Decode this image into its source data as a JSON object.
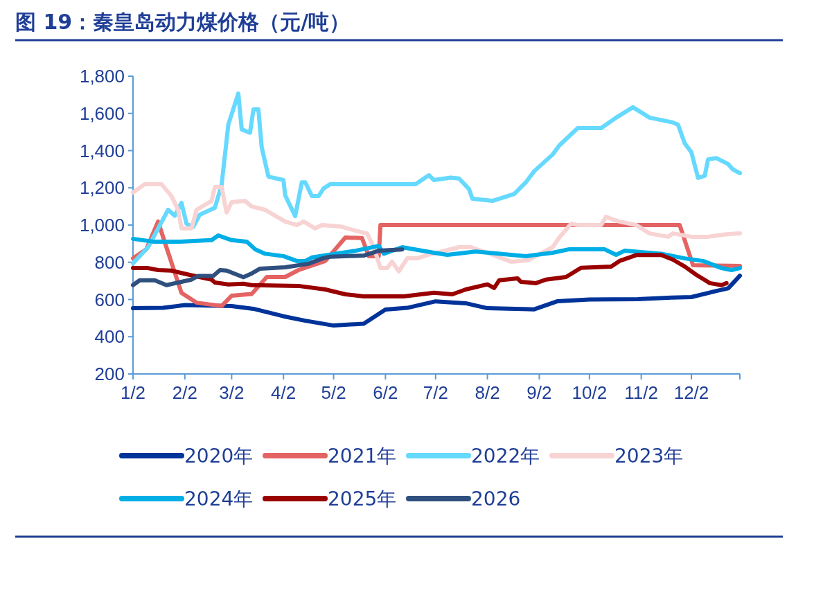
{
  "chart_data": {
    "type": "line",
    "title": "图 19：秦皇岛动力煤价格（元/吨）",
    "xlim": [
      "--01-02",
      "--12-31"
    ],
    "xticks": [
      {
        "value": "--01-02",
        "label": "1/2"
      },
      {
        "value": "--02-02",
        "label": "2/2"
      },
      {
        "value": "--03-02",
        "label": "3/2"
      },
      {
        "value": "--04-02",
        "label": "4/2"
      },
      {
        "value": "--05-02",
        "label": "5/2"
      },
      {
        "value": "--06-02",
        "label": "6/2"
      },
      {
        "value": "--07-02",
        "label": "7/2"
      },
      {
        "value": "--08-02",
        "label": "8/2"
      },
      {
        "value": "--09-02",
        "label": "9/2"
      },
      {
        "value": "--10-02",
        "label": "10/2"
      },
      {
        "value": "--11-02",
        "label": "11/2"
      },
      {
        "value": "--12-02",
        "label": "12/2"
      }
    ],
    "ylim": [
      200,
      1800
    ],
    "yticks": [
      200,
      400,
      600,
      800,
      {
        "value": 1000,
        "label": "1,000"
      },
      {
        "value": 1200,
        "label": "1,200"
      },
      {
        "value": 1400,
        "label": "1,400"
      },
      {
        "value": 1600,
        "label": "1,600"
      },
      {
        "value": 1800,
        "label": "1,800"
      }
    ],
    "grid": false,
    "legend": "bottom",
    "marker": "none",
    "line_style": "solid",
    "series": [
      {
        "name": "2020年",
        "color": "#003399",
        "x": [
          "--01-02",
          "--01-20",
          "--02-02",
          "--03-02",
          "--03-15",
          "--04-02",
          "--04-15",
          "--05-02",
          "--05-20",
          "--06-02",
          "--06-15",
          "--07-02",
          "--07-20",
          "--08-02",
          "--08-30",
          "--09-13",
          "--10-02",
          "--10-31",
          "--11-20",
          "--12-02",
          "--12-17",
          "--12-24",
          "--12-31"
        ],
        "values": [
          553,
          555,
          570,
          565,
          550,
          510,
          486,
          460,
          470,
          546,
          555,
          590,
          580,
          553,
          547,
          591,
          600,
          602,
          610,
          613,
          646,
          660,
          728
        ]
      },
      {
        "name": "2021年",
        "color": "#e46464",
        "x": [
          "--01-02",
          "--01-10",
          "--01-17",
          "--01-21",
          "--01-31",
          "--02-09",
          "--02-24",
          "--03-02",
          "--03-14",
          "--03-23",
          "--04-03",
          "--04-11",
          "--04-27",
          "--05-09",
          "--05-19",
          "--05-23",
          "--05-29",
          "--05-30",
          "--11-25",
          "--12-03",
          "--12-31"
        ],
        "values": [
          821,
          870,
          1019,
          907,
          635,
          583,
          565,
          620,
          630,
          721,
          721,
          758,
          807,
          933,
          930,
          833,
          833,
          1000,
          1000,
          784,
          780
        ]
      },
      {
        "name": "2022年",
        "color": "#66d9ff",
        "x": [
          "--01-02",
          "--01-11",
          "--01-23",
          "--01-27",
          "--01-31",
          "--02-03",
          "--02-07",
          "--02-11",
          "--02-20",
          "--02-24",
          "--02-28",
          "--03-06",
          "--03-08",
          "--03-13",
          "--03-15",
          "--03-18",
          "--03-20",
          "--03-24",
          "--04-02",
          "--04-03",
          "--04-09",
          "--04-13",
          "--04-15",
          "--04-19",
          "--04-23",
          "--04-26",
          "--04-30",
          "--06-20",
          "--06-28",
          "--07-01",
          "--07-11",
          "--07-16",
          "--07-22",
          "--07-24",
          "--08-05",
          "--08-18",
          "--08-25",
          "--08-30",
          "--09-10",
          "--09-14",
          "--09-25",
          "--10-09",
          "--10-18",
          "--10-28",
          "--11-07",
          "--11-21",
          "--11-24",
          "--11-28",
          "--12-02",
          "--12-06",
          "--12-10",
          "--12-12",
          "--12-17",
          "--12-24",
          "--12-27",
          "--12-31"
        ],
        "values": [
          795,
          881,
          1082,
          1050,
          1119,
          1007,
          990,
          1056,
          1093,
          1216,
          1540,
          1707,
          1514,
          1496,
          1621,
          1621,
          1417,
          1260,
          1242,
          1160,
          1048,
          1230,
          1230,
          1156,
          1156,
          1197,
          1220,
          1220,
          1268,
          1242,
          1255,
          1250,
          1193,
          1141,
          1130,
          1167,
          1230,
          1290,
          1379,
          1428,
          1521,
          1521,
          1577,
          1633,
          1577,
          1551,
          1540,
          1439,
          1391,
          1253,
          1265,
          1353,
          1360,
          1328,
          1298,
          1279
        ]
      },
      {
        "name": "2023年",
        "color": "#f8d3d3",
        "x": [
          "--01-02",
          "--01-09",
          "--01-19",
          "--01-25",
          "--01-29",
          "--01-31",
          "--02-06",
          "--02-09",
          "--02-18",
          "--02-20",
          "--02-24",
          "--02-27",
          "--03-02",
          "--03-10",
          "--03-14",
          "--03-22",
          "--04-03",
          "--04-10",
          "--04-14",
          "--04-21",
          "--04-25",
          "--05-06",
          "--05-15",
          "--05-22",
          "--05-26",
          "--05-30",
          "--06-03",
          "--06-06",
          "--06-10",
          "--06-15",
          "--06-21",
          "--06-27",
          "--07-16",
          "--07-23",
          "--08-02",
          "--08-16",
          "--08-26",
          "--09-10",
          "--09-14",
          "--09-21",
          "--09-25",
          "--10-09",
          "--10-12",
          "--10-16",
          "--10-20",
          "--10-30",
          "--11-07",
          "--11-18",
          "--11-21",
          "--12-02",
          "--12-12",
          "--12-23",
          "--12-31"
        ],
        "values": [
          1175,
          1220,
          1220,
          1156,
          1082,
          982,
          982,
          1082,
          1130,
          1205,
          1205,
          1067,
          1123,
          1130,
          1100,
          1082,
          1019,
          1000,
          1019,
          982,
          1000,
          993,
          970,
          955,
          881,
          769,
          769,
          803,
          751,
          821,
          821,
          839,
          881,
          881,
          851,
          803,
          810,
          881,
          933,
          1007,
          1000,
          1000,
          1045,
          1030,
          1019,
          1000,
          955,
          937,
          955,
          937,
          937,
          951,
          955
        ]
      },
      {
        "name": "2024年",
        "color": "#00aee6",
        "x": [
          "--01-02",
          "--01-14",
          "--01-30",
          "--02-18",
          "--02-22",
          "--03-02",
          "--03-11",
          "--03-16",
          "--03-22",
          "--04-02",
          "--04-10",
          "--04-15",
          "--04-19",
          "--05-15",
          "--05-29",
          "--06-01",
          "--06-12",
          "--07-01",
          "--07-09",
          "--07-26",
          "--08-25",
          "--09-10",
          "--09-20",
          "--10-11",
          "--10-18",
          "--10-23",
          "--11-14",
          "--11-28",
          "--12-09",
          "--12-20",
          "--12-26",
          "--12-31"
        ],
        "values": [
          926,
          911,
          911,
          919,
          944,
          919,
          911,
          870,
          846,
          833,
          807,
          807,
          826,
          862,
          888,
          846,
          881,
          851,
          840,
          858,
          833,
          851,
          870,
          870,
          840,
          862,
          846,
          821,
          807,
          769,
          758,
          769
        ]
      },
      {
        "name": "2025年",
        "color": "#990000",
        "x": [
          "--01-02",
          "--01-11",
          "--01-17",
          "--01-25",
          "--02-05",
          "--02-18",
          "--02-20",
          "--02-28",
          "--03-09",
          "--03-14",
          "--04-11",
          "--04-27",
          "--05-09",
          "--05-20",
          "--06-13",
          "--07-01",
          "--07-12",
          "--07-20",
          "--08-02",
          "--08-06",
          "--08-09",
          "--08-20",
          "--08-22",
          "--08-31",
          "--09-06",
          "--09-18",
          "--09-27",
          "--10-15",
          "--10-20",
          "--10-30",
          "--11-14",
          "--11-21",
          "--11-28",
          "--12-05",
          "--12-13",
          "--12-20",
          "--12-23"
        ],
        "values": [
          769,
          769,
          758,
          755,
          732,
          707,
          691,
          681,
          685,
          677,
          673,
          654,
          628,
          617,
          617,
          636,
          628,
          654,
          681,
          662,
          703,
          714,
          695,
          688,
          707,
          721,
          770,
          777,
          807,
          839,
          839,
          814,
          777,
          732,
          688,
          677,
          688
        ]
      },
      {
        "name": "2026",
        "color": "#2f4f7f",
        "x": [
          "--01-02",
          "--01-06",
          "--01-15",
          "--01-22",
          "--01-29",
          "--02-06",
          "--02-10",
          "--02-19",
          "--02-23",
          "--02-27",
          "--03-09",
          "--03-14",
          "--03-19",
          "--04-03",
          "--04-17",
          "--04-26",
          "--04-30",
          "--05-20",
          "--05-29",
          "--06-12"
        ],
        "values": [
          677,
          703,
          703,
          677,
          691,
          707,
          727,
          727,
          758,
          755,
          720,
          740,
          766,
          773,
          792,
          823,
          830,
          836,
          862,
          869
        ]
      }
    ]
  }
}
